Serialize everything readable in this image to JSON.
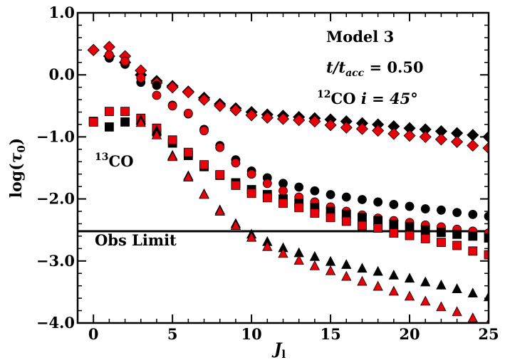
{
  "chart_data": {
    "type": "scatter",
    "xlabel": "J",
    "xlabel_sub": "l",
    "ylabel_pre": "log(",
    "ylabel_sym": "τ",
    "ylabel_sub": "0",
    "ylabel_post": ")",
    "xlim": [
      -1,
      25
    ],
    "ylim": [
      -4.0,
      1.0
    ],
    "xticks": [
      0,
      5,
      10,
      15,
      20,
      25
    ],
    "yticks": [
      1.0,
      0.0,
      -1.0,
      -2.0,
      -3.0,
      -4.0
    ],
    "ytick_labels": [
      "1.0",
      "0.0",
      "−1.0",
      "−2.0",
      "−3.0",
      "−4.0"
    ],
    "grid": false,
    "reference_line": {
      "y": -2.52,
      "label": "Obs Limit"
    },
    "annotations": {
      "model": "Model 3",
      "time_left": "t/t",
      "time_sub": "acc",
      "time_right": " = 0.50",
      "iso12_sup": "12",
      "iso12_text": "CO ",
      "inclination": "i = 45°",
      "iso13_sup": "13",
      "iso13_text": "CO"
    },
    "colors": {
      "black": "#000000",
      "red": "#e8000b"
    },
    "series": [
      {
        "marker": "diamond",
        "color": "black",
        "x": [
          0,
          1,
          2,
          3,
          4,
          5,
          6,
          7,
          8,
          9,
          10,
          11,
          12,
          13,
          14,
          15,
          16,
          17,
          18,
          19,
          20,
          21,
          22,
          23,
          24,
          25
        ],
        "y": [
          0.4,
          0.3,
          0.2,
          0.0,
          -0.1,
          -0.18,
          -0.27,
          -0.37,
          -0.47,
          -0.54,
          -0.6,
          -0.64,
          -0.66,
          -0.68,
          -0.7,
          -0.72,
          -0.75,
          -0.78,
          -0.8,
          -0.83,
          -0.86,
          -0.88,
          -0.91,
          -0.94,
          -0.97,
          -1.0
        ]
      },
      {
        "marker": "diamond",
        "color": "red",
        "x": [
          0,
          1,
          2,
          3,
          4,
          5,
          6,
          7,
          8,
          9,
          10,
          11,
          12,
          13,
          14,
          15,
          16,
          17,
          18,
          19,
          20,
          21,
          22,
          23,
          24,
          25
        ],
        "y": [
          0.4,
          0.45,
          0.3,
          0.07,
          -0.13,
          -0.2,
          -0.28,
          -0.4,
          -0.5,
          -0.57,
          -0.65,
          -0.69,
          -0.71,
          -0.73,
          -0.75,
          -0.81,
          -0.85,
          -0.87,
          -0.9,
          -0.95,
          -0.98,
          -1.0,
          -1.04,
          -1.08,
          -1.14,
          -1.18
        ]
      },
      {
        "marker": "circle",
        "color": "black",
        "x": [
          1,
          2,
          3,
          4,
          5,
          6,
          7,
          8,
          9,
          10,
          11,
          12,
          13,
          14,
          15,
          16,
          17,
          18,
          19,
          20,
          21,
          22,
          23,
          24,
          25
        ],
        "y": [
          0.27,
          0.17,
          -0.12,
          -0.17,
          -0.49,
          -0.63,
          -0.88,
          -1.14,
          -1.37,
          -1.55,
          -1.66,
          -1.75,
          -1.81,
          -1.87,
          -1.93,
          -1.97,
          -2.01,
          -2.05,
          -2.09,
          -2.12,
          -2.16,
          -2.18,
          -2.22,
          -2.25,
          -2.28
        ]
      },
      {
        "marker": "circle",
        "color": "red",
        "x": [
          1,
          2,
          3,
          4,
          5,
          6,
          7,
          8,
          9,
          10,
          11,
          12,
          13,
          14,
          15,
          16,
          17,
          18,
          19,
          20,
          21,
          22,
          23,
          24,
          25
        ],
        "y": [
          0.32,
          0.22,
          -0.05,
          -0.33,
          -0.5,
          -0.62,
          -0.9,
          -1.17,
          -1.42,
          -1.6,
          -1.75,
          -1.87,
          -1.97,
          -2.05,
          -2.13,
          -2.2,
          -2.26,
          -2.31,
          -2.35,
          -2.38,
          -2.42,
          -2.45,
          -2.49,
          -2.52,
          -2.55
        ]
      },
      {
        "marker": "square",
        "color": "black",
        "x": [
          0,
          1,
          2,
          3,
          4,
          5,
          6,
          7,
          8,
          9,
          10,
          11,
          12,
          13,
          14,
          15,
          16,
          17,
          18,
          19,
          20,
          21,
          22,
          23,
          24,
          25
        ],
        "y": [
          -0.75,
          -0.84,
          -0.76,
          -0.74,
          -0.92,
          -1.1,
          -1.3,
          -1.48,
          -1.62,
          -1.74,
          -1.85,
          -1.93,
          -2.0,
          -2.07,
          -2.14,
          -2.2,
          -2.25,
          -2.3,
          -2.35,
          -2.41,
          -2.45,
          -2.5,
          -2.54,
          -2.57,
          -2.6,
          -2.63
        ]
      },
      {
        "marker": "square",
        "color": "red",
        "x": [
          0,
          1,
          2,
          3,
          4,
          5,
          6,
          7,
          8,
          9,
          10,
          11,
          12,
          13,
          14,
          15,
          16,
          17,
          18,
          19,
          20,
          21,
          22,
          23,
          24,
          25
        ],
        "y": [
          -0.76,
          -0.59,
          -0.59,
          -0.7,
          -0.86,
          -1.05,
          -1.25,
          -1.45,
          -1.61,
          -1.78,
          -1.91,
          -1.98,
          -2.07,
          -2.14,
          -2.23,
          -2.3,
          -2.36,
          -2.43,
          -2.47,
          -2.55,
          -2.59,
          -2.64,
          -2.7,
          -2.75,
          -2.84,
          -2.9
        ]
      },
      {
        "marker": "triangle",
        "color": "black",
        "x": [
          3,
          4,
          5,
          6,
          7,
          8,
          9,
          10,
          11,
          12,
          13,
          14,
          15,
          16,
          17,
          18,
          19,
          20,
          21,
          22,
          23,
          24,
          25
        ],
        "y": [
          -0.73,
          -0.9,
          -1.3,
          -1.63,
          -1.92,
          -2.18,
          -2.4,
          -2.57,
          -2.69,
          -2.79,
          -2.87,
          -2.93,
          -3.01,
          -3.06,
          -3.12,
          -3.17,
          -3.23,
          -3.28,
          -3.34,
          -3.39,
          -3.45,
          -3.52,
          -3.58
        ]
      },
      {
        "marker": "triangle",
        "color": "red",
        "x": [
          3,
          4,
          5,
          6,
          7,
          8,
          9,
          10,
          11,
          12,
          13,
          14,
          15,
          16,
          17,
          18,
          19,
          20,
          21,
          22,
          23,
          24,
          25
        ],
        "y": [
          -0.77,
          -0.97,
          -1.32,
          -1.65,
          -1.93,
          -2.2,
          -2.43,
          -2.62,
          -2.77,
          -2.88,
          -2.99,
          -3.08,
          -3.16,
          -3.25,
          -3.33,
          -3.41,
          -3.49,
          -3.57,
          -3.65,
          -3.74,
          -3.82,
          -3.92,
          -4.01
        ]
      }
    ]
  }
}
